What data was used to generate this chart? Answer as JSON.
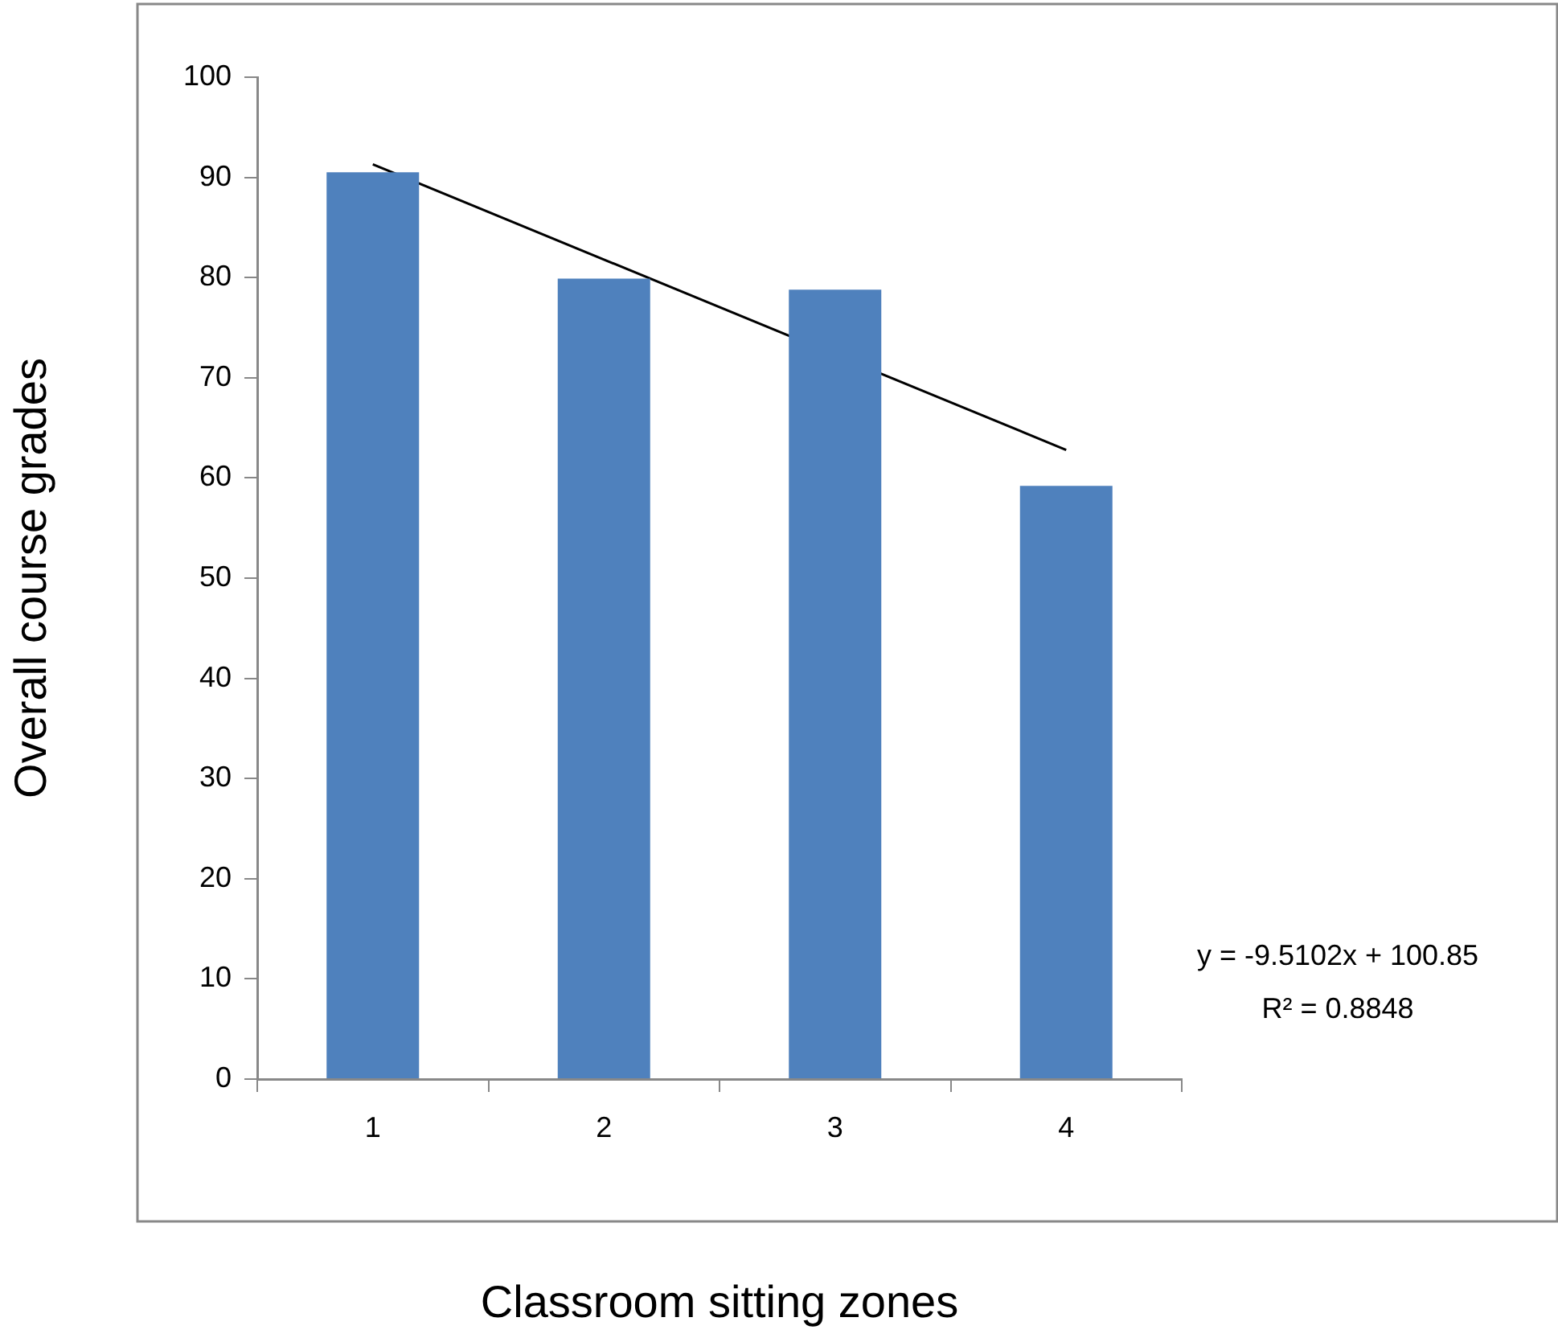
{
  "chart_data": {
    "type": "bar",
    "xlabel": "Classroom sitting zones",
    "ylabel": "Overall course grades",
    "categories": [
      "1",
      "2",
      "3",
      "4"
    ],
    "series": [
      {
        "color": "#4f81bd",
        "values": [
          90.5,
          79.9,
          78.8,
          59.2
        ]
      },
      {
        "type": "line",
        "color": "#000000",
        "values": [
          91.3,
          null,
          null,
          62.8
        ]
      }
    ],
    "ylim": [
      0,
      100
    ],
    "yticks": [
      0,
      10,
      20,
      30,
      40,
      50,
      60,
      70,
      80,
      90,
      100
    ],
    "grid": false,
    "legend": false,
    "annotations": [
      "y = -9.5102x + 100.85",
      "R² = 0.8848"
    ]
  }
}
